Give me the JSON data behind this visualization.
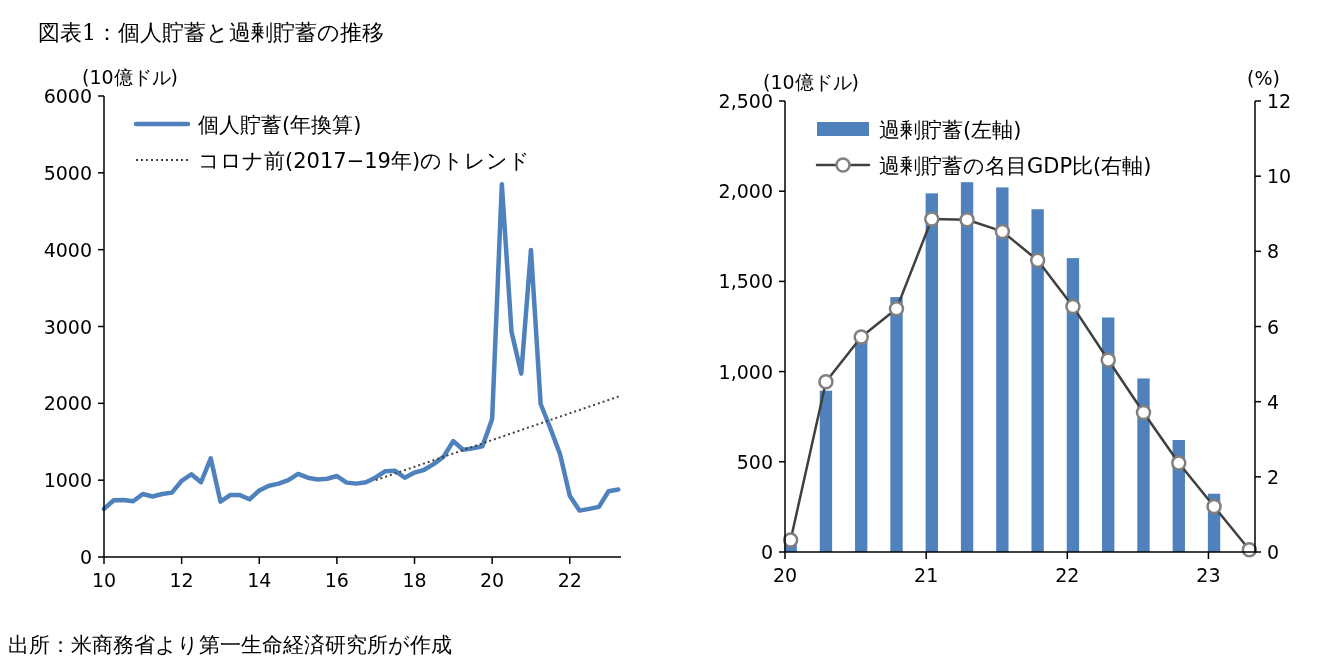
{
  "chart_data": [
    {
      "type": "line",
      "title": "図表1：個人貯蓄と過剰貯蓄の推移",
      "ylabel": "(10億ドル)",
      "annotations": [
        "出所：米商務省より第一生命経済研究所が作成"
      ],
      "x": [
        10,
        10.25,
        10.5,
        10.75,
        11,
        11.25,
        11.5,
        11.75,
        12,
        12.25,
        12.5,
        12.75,
        13,
        13.25,
        13.5,
        13.75,
        14,
        14.25,
        14.5,
        14.75,
        15,
        15.25,
        15.5,
        15.75,
        16,
        16.25,
        16.5,
        16.75,
        17,
        17.25,
        17.5,
        17.75,
        18,
        18.25,
        18.5,
        18.75,
        19,
        19.25,
        19.5,
        19.75,
        20,
        20.25,
        20.5,
        20.75,
        21,
        21.25,
        21.5,
        21.75,
        22,
        22.25,
        22.5,
        22.75,
        23,
        23.25
      ],
      "xlim": [
        10,
        23.32
      ],
      "xticks": [
        10,
        12,
        14,
        16,
        18,
        20,
        22
      ],
      "ylim": [
        0,
        6000
      ],
      "yticks": [
        0,
        1000,
        2000,
        3000,
        4000,
        5000,
        6000
      ],
      "legend": "top left",
      "grid": false,
      "series": [
        {
          "name": "個人貯蓄(年換算)",
          "color": "#4f81bd",
          "values": [
            626,
            739,
            743,
            725,
            820,
            788,
            820,
            838,
            991,
            1077,
            973,
            1284,
            721,
            806,
            806,
            752,
            865,
            928,
            955,
            1000,
            1081,
            1032,
            1009,
            1018,
            1054,
            968,
            955,
            973,
            1036,
            1117,
            1122,
            1032,
            1099,
            1135,
            1212,
            1306,
            1509,
            1396,
            1414,
            1441,
            1797,
            4851,
            2928,
            2387,
            3995,
            1991,
            1676,
            1338,
            797,
            604,
            626,
            653,
            856,
            878
          ]
        },
        {
          "name": "コロナ前(2017−19年)のトレンド",
          "type": "line",
          "color": "#404040",
          "line_style": "dotted",
          "x": [
            17,
            23.32
          ],
          "values": [
            1000,
            2100
          ]
        }
      ]
    },
    {
      "type": "bar",
      "ylabel": "(10億ドル)",
      "y2label": "(%)",
      "x": [
        20.04,
        20.29,
        20.54,
        20.79,
        21.04,
        21.29,
        21.54,
        21.79,
        22.04,
        22.29,
        22.54,
        22.79,
        23.04,
        23.29
      ],
      "xlim": [
        20,
        23.33
      ],
      "xticks": [
        20,
        21,
        22,
        23
      ],
      "ylim": [
        0,
        2500
      ],
      "yticks": [
        0,
        500,
        {
          "value": 1000,
          "label": "1,000"
        },
        {
          "value": 1500,
          "label": "1,500"
        },
        {
          "value": 2000,
          "label": "2,000"
        },
        {
          "value": 2500,
          "label": "2,500"
        }
      ],
      "y2lim": [
        0,
        12
      ],
      "y2ticks": [
        0,
        2,
        4,
        6,
        8,
        10,
        12
      ],
      "legend": "top left",
      "grid": false,
      "series": [
        {
          "name": "過剰貯蓄(左軸)",
          "color": "#4f81bd",
          "values": [
            40,
            894,
            1169,
            1413,
            1988,
            2050,
            2021,
            1900,
            1629,
            1300,
            962,
            621,
            323,
            null
          ]
        },
        {
          "name": "過剰貯蓄の名目GDP比(右軸)",
          "type": "line",
          "axis": "y2",
          "marker": "circle",
          "color": "#404040",
          "values": [
            0.32,
            4.53,
            5.72,
            6.47,
            8.86,
            8.84,
            8.53,
            7.76,
            6.53,
            5.11,
            3.71,
            2.37,
            1.21,
            0.06
          ]
        }
      ]
    }
  ]
}
